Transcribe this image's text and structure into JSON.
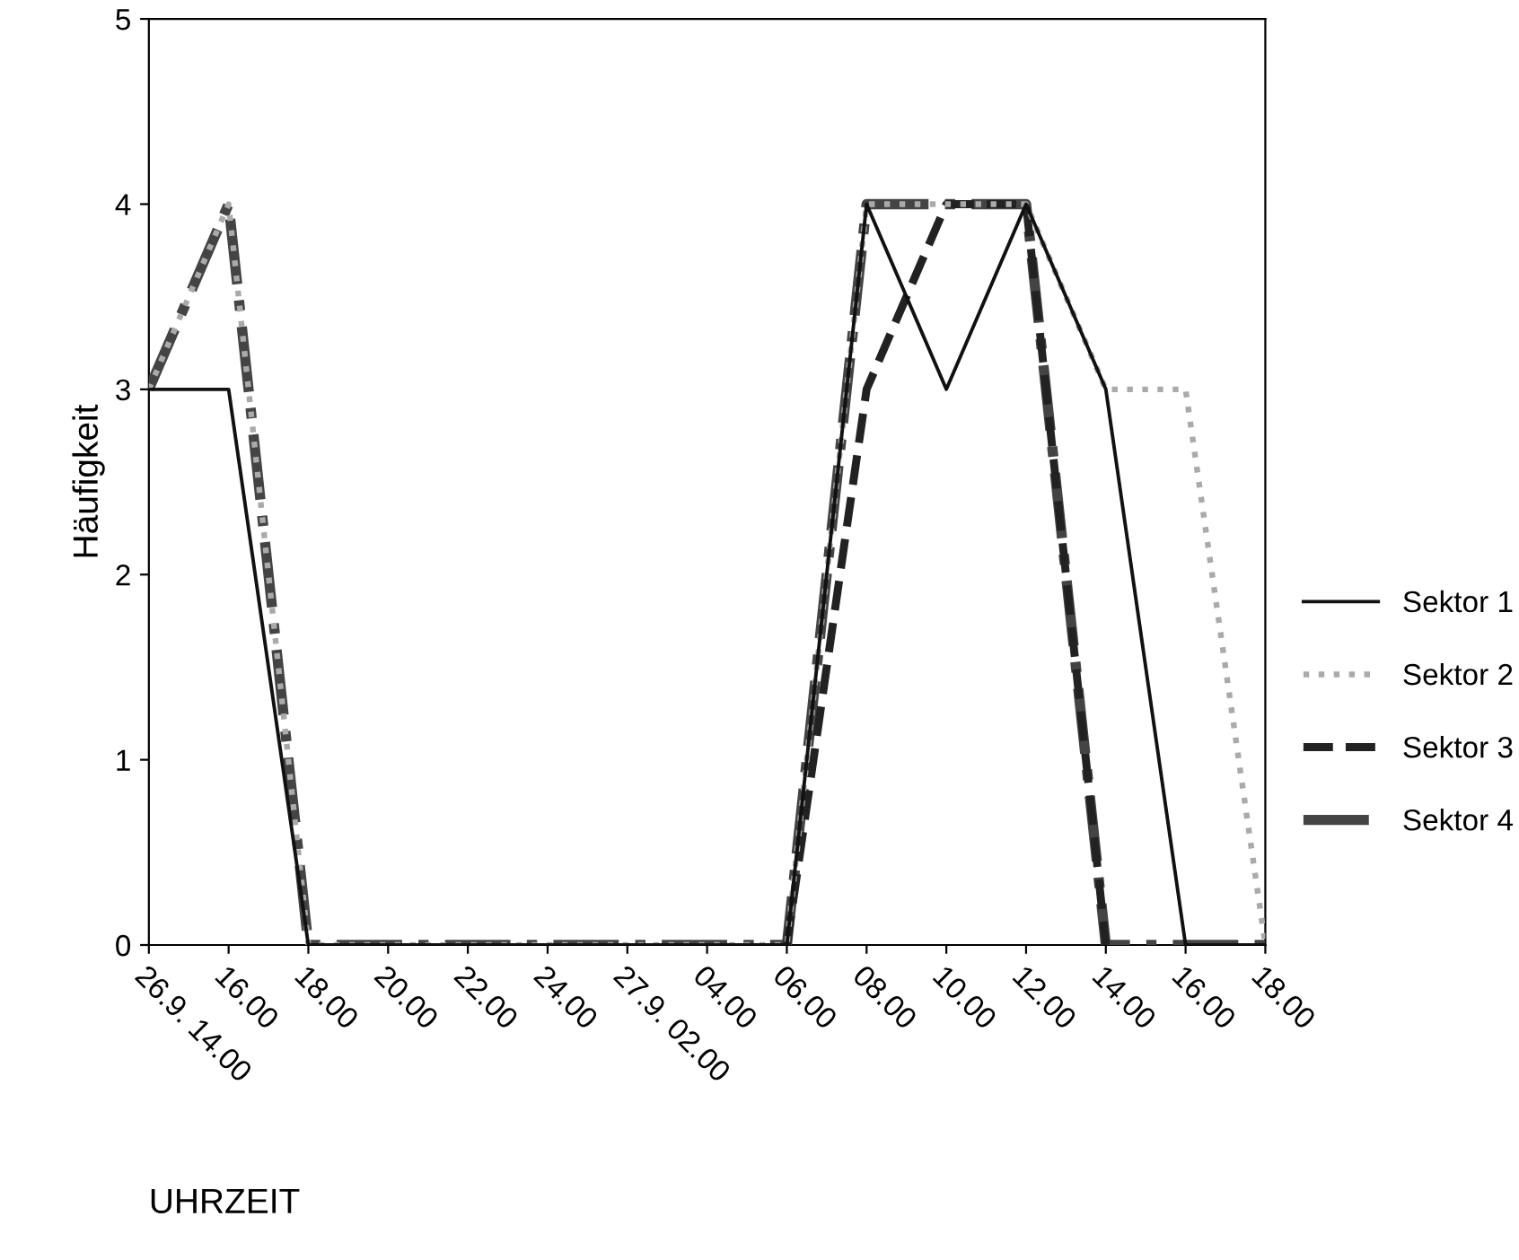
{
  "chart_data": {
    "type": "line",
    "xlabel": "UHRZEIT",
    "ylabel": "Häufigkeit",
    "categories": [
      "26.9. 14.00",
      "16.00",
      "18.00",
      "20.00",
      "22.00",
      "24.00",
      "27.9. 02.00",
      "04.00",
      "06.00",
      "08.00",
      "10.00",
      "12.00",
      "14.00",
      "16.00",
      "18.00"
    ],
    "series": [
      {
        "name": "Sektor 1",
        "color": "#111111",
        "line_style": "solid",
        "values": [
          3,
          3,
          0,
          0,
          0,
          0,
          0,
          0,
          0,
          4,
          3,
          4,
          3,
          0,
          0
        ]
      },
      {
        "name": "Sektor 2",
        "color": "#aaaaaa",
        "line_style": "dotted",
        "values": [
          3,
          4,
          0,
          0,
          0,
          0,
          0,
          0,
          0,
          4,
          4,
          4,
          3,
          3,
          0
        ]
      },
      {
        "name": "Sektor 3",
        "color": "#222222",
        "line_style": "dashed",
        "values": [
          null,
          null,
          null,
          null,
          null,
          null,
          null,
          null,
          0,
          3,
          4,
          4,
          0,
          null,
          null
        ]
      },
      {
        "name": "Sektor 4",
        "color": "#444444",
        "line_style": "dashdot",
        "values": [
          3,
          4,
          0,
          0,
          0,
          0,
          0,
          0,
          0,
          4,
          4,
          4,
          0,
          0,
          0
        ]
      }
    ],
    "ylim": [
      0,
      5
    ],
    "yticks": [
      0,
      1,
      2,
      3,
      4,
      5
    ],
    "grid": false,
    "legend": "right",
    "marker": "none"
  }
}
